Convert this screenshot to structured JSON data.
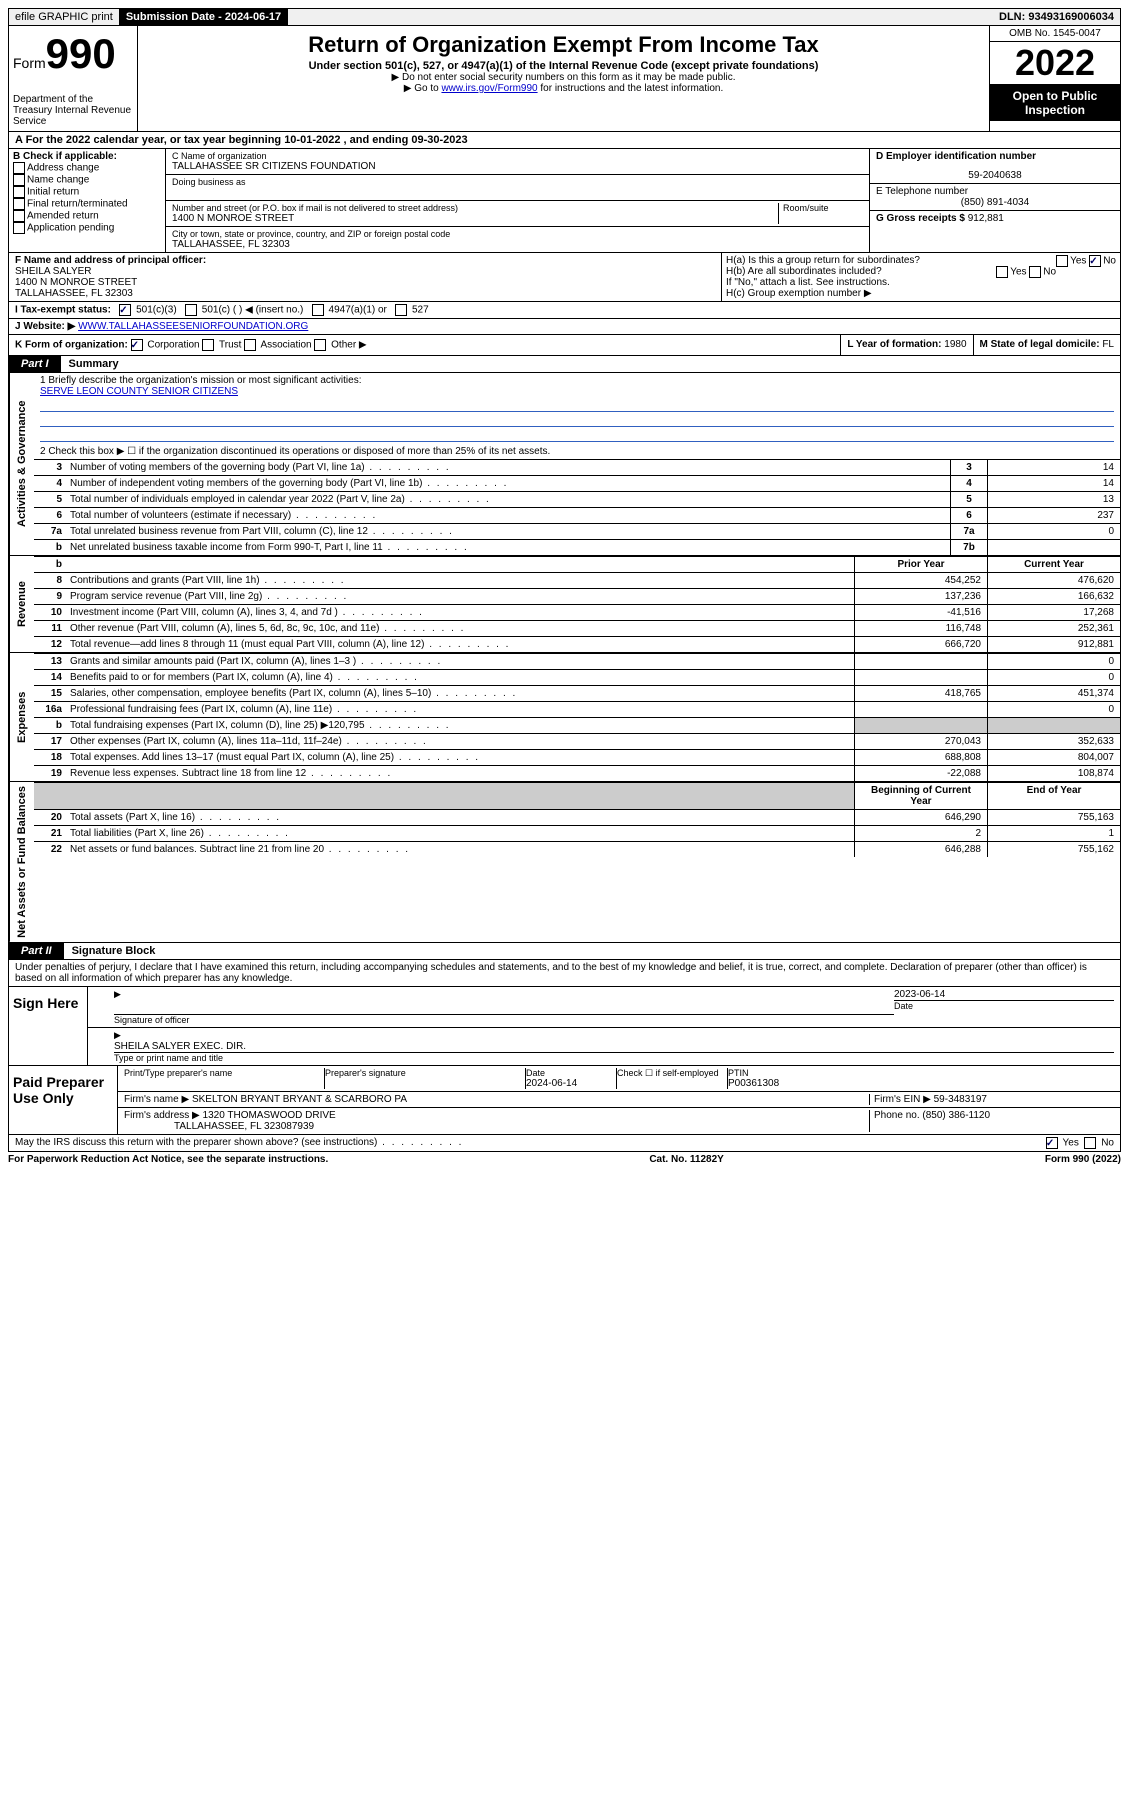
{
  "topbar": {
    "efile": "efile GRAPHIC print",
    "submission_label": "Submission Date - 2024-06-17",
    "dln": "DLN: 93493169006034"
  },
  "header": {
    "form_word": "Form",
    "form_num": "990",
    "dept": "Department of the Treasury Internal Revenue Service",
    "title": "Return of Organization Exempt From Income Tax",
    "sub": "Under section 501(c), 527, or 4947(a)(1) of the Internal Revenue Code (except private foundations)",
    "note1": "▶ Do not enter social security numbers on this form as it may be made public.",
    "note2_pre": "▶ Go to ",
    "note2_link": "www.irs.gov/Form990",
    "note2_post": " for instructions and the latest information.",
    "omb": "OMB No. 1545-0047",
    "year": "2022",
    "inspect": "Open to Public Inspection"
  },
  "line_a": "A For the 2022 calendar year, or tax year beginning 10-01-2022   , and ending 09-30-2023",
  "col_b": {
    "label": "B Check if applicable:",
    "items": [
      "Address change",
      "Name change",
      "Initial return",
      "Final return/terminated",
      "Amended return",
      "Application pending"
    ]
  },
  "col_c": {
    "name_lbl": "C Name of organization",
    "name": "TALLAHASSEE SR CITIZENS FOUNDATION",
    "dba_lbl": "Doing business as",
    "addr_lbl": "Number and street (or P.O. box if mail is not delivered to street address)",
    "room_lbl": "Room/suite",
    "addr": "1400 N MONROE STREET",
    "city_lbl": "City or town, state or province, country, and ZIP or foreign postal code",
    "city": "TALLAHASSEE, FL  32303"
  },
  "col_d": {
    "ein_lbl": "D Employer identification number",
    "ein": "59-2040638",
    "tel_lbl": "E Telephone number",
    "tel": "(850) 891-4034",
    "gross_lbl": "G Gross receipts $",
    "gross": "912,881"
  },
  "row_f": {
    "lbl": "F Name and address of principal officer:",
    "name": "SHEILA SALYER",
    "addr1": "1400 N MONROE STREET",
    "addr2": "TALLAHASSEE, FL  32303"
  },
  "row_h": {
    "ha": "H(a)  Is this a group return for subordinates?",
    "hb": "H(b)  Are all subordinates included?",
    "hb_note": "If \"No,\" attach a list. See instructions.",
    "hc": "H(c)  Group exemption number ▶",
    "yes": "Yes",
    "no": "No"
  },
  "row_i": {
    "lbl": "I   Tax-exempt status:",
    "opt1": "501(c)(3)",
    "opt2": "501(c) (  ) ◀ (insert no.)",
    "opt3": "4947(a)(1) or",
    "opt4": "527"
  },
  "row_j": {
    "lbl": "J   Website: ▶",
    "val": "WWW.TALLAHASSEESENIORFOUNDATION.ORG"
  },
  "row_k": {
    "lbl": "K Form of organization:",
    "opts": [
      "Corporation",
      "Trust",
      "Association",
      "Other ▶"
    ],
    "l_lbl": "L Year of formation:",
    "l_val": "1980",
    "m_lbl": "M State of legal domicile:",
    "m_val": "FL"
  },
  "part1": {
    "tab": "Part I",
    "title": "Summary",
    "mission_lbl": "1  Briefly describe the organization's mission or most significant activities:",
    "mission": "SERVE LEON COUNTY SENIOR CITIZENS",
    "line2": "2   Check this box ▶ ☐  if the organization discontinued its operations or disposed of more than 25% of its net assets."
  },
  "vtabs": {
    "gov": "Activities & Governance",
    "rev": "Revenue",
    "exp": "Expenses",
    "net": "Net Assets or Fund Balances"
  },
  "gov_rows": [
    {
      "n": "3",
      "d": "Number of voting members of the governing body (Part VI, line 1a)",
      "k": "3",
      "v": "14"
    },
    {
      "n": "4",
      "d": "Number of independent voting members of the governing body (Part VI, line 1b)",
      "k": "4",
      "v": "14"
    },
    {
      "n": "5",
      "d": "Total number of individuals employed in calendar year 2022 (Part V, line 2a)",
      "k": "5",
      "v": "13"
    },
    {
      "n": "6",
      "d": "Total number of volunteers (estimate if necessary)",
      "k": "6",
      "v": "237"
    },
    {
      "n": "7a",
      "d": "Total unrelated business revenue from Part VIII, column (C), line 12",
      "k": "7a",
      "v": "0"
    },
    {
      "n": "b",
      "d": "Net unrelated business taxable income from Form 990-T, Part I, line 11",
      "k": "7b",
      "v": ""
    }
  ],
  "two_col_hdr": {
    "py": "Prior Year",
    "cy": "Current Year"
  },
  "rev_rows": [
    {
      "n": "8",
      "d": "Contributions and grants (Part VIII, line 1h)",
      "py": "454,252",
      "cy": "476,620"
    },
    {
      "n": "9",
      "d": "Program service revenue (Part VIII, line 2g)",
      "py": "137,236",
      "cy": "166,632"
    },
    {
      "n": "10",
      "d": "Investment income (Part VIII, column (A), lines 3, 4, and 7d )",
      "py": "-41,516",
      "cy": "17,268"
    },
    {
      "n": "11",
      "d": "Other revenue (Part VIII, column (A), lines 5, 6d, 8c, 9c, 10c, and 11e)",
      "py": "116,748",
      "cy": "252,361"
    },
    {
      "n": "12",
      "d": "Total revenue—add lines 8 through 11 (must equal Part VIII, column (A), line 12)",
      "py": "666,720",
      "cy": "912,881"
    }
  ],
  "exp_rows": [
    {
      "n": "13",
      "d": "Grants and similar amounts paid (Part IX, column (A), lines 1–3 )",
      "py": "",
      "cy": "0"
    },
    {
      "n": "14",
      "d": "Benefits paid to or for members (Part IX, column (A), line 4)",
      "py": "",
      "cy": "0"
    },
    {
      "n": "15",
      "d": "Salaries, other compensation, employee benefits (Part IX, column (A), lines 5–10)",
      "py": "418,765",
      "cy": "451,374"
    },
    {
      "n": "16a",
      "d": "Professional fundraising fees (Part IX, column (A), line 11e)",
      "py": "",
      "cy": "0"
    },
    {
      "n": "b",
      "d": "Total fundraising expenses (Part IX, column (D), line 25) ▶120,795",
      "py": "grey",
      "cy": "grey"
    },
    {
      "n": "17",
      "d": "Other expenses (Part IX, column (A), lines 11a–11d, 11f–24e)",
      "py": "270,043",
      "cy": "352,633"
    },
    {
      "n": "18",
      "d": "Total expenses. Add lines 13–17 (must equal Part IX, column (A), line 25)",
      "py": "688,808",
      "cy": "804,007"
    },
    {
      "n": "19",
      "d": "Revenue less expenses. Subtract line 18 from line 12",
      "py": "-22,088",
      "cy": "108,874"
    }
  ],
  "net_hdr": {
    "py": "Beginning of Current Year",
    "cy": "End of Year"
  },
  "net_rows": [
    {
      "n": "20",
      "d": "Total assets (Part X, line 16)",
      "py": "646,290",
      "cy": "755,163"
    },
    {
      "n": "21",
      "d": "Total liabilities (Part X, line 26)",
      "py": "2",
      "cy": "1"
    },
    {
      "n": "22",
      "d": "Net assets or fund balances. Subtract line 21 from line 20",
      "py": "646,288",
      "cy": "755,162"
    }
  ],
  "part2": {
    "tab": "Part II",
    "title": "Signature Block",
    "decl": "Under penalties of perjury, I declare that I have examined this return, including accompanying schedules and statements, and to the best of my knowledge and belief, it is true, correct, and complete. Declaration of preparer (other than officer) is based on all information of which preparer has any knowledge."
  },
  "sign": {
    "left": "Sign Here",
    "sig_lbl": "Signature of officer",
    "date": "2023-06-14",
    "date_lbl": "Date",
    "name": "SHEILA SALYER  EXEC. DIR.",
    "name_lbl": "Type or print name and title"
  },
  "paid": {
    "left": "Paid Preparer Use Only",
    "r1": {
      "c1": "Print/Type preparer's name",
      "c2": "Preparer's signature",
      "c3": "Date",
      "c3v": "2024-06-14",
      "c4": "Check ☐ if self-employed",
      "c5": "PTIN",
      "c5v": "P00361308"
    },
    "r2": {
      "lbl": "Firm's name    ▶",
      "val": "SKELTON BRYANT BRYANT & SCARBORO PA",
      "ein_lbl": "Firm's EIN ▶",
      "ein": "59-3483197"
    },
    "r3": {
      "lbl": "Firm's address ▶",
      "val1": "1320 THOMASWOOD DRIVE",
      "val2": "TALLAHASSEE, FL  323087939",
      "ph_lbl": "Phone no.",
      "ph": "(850) 386-1120"
    }
  },
  "discuss": "May the IRS discuss this return with the preparer shown above? (see instructions)",
  "footer": {
    "left": "For Paperwork Reduction Act Notice, see the separate instructions.",
    "mid": "Cat. No. 11282Y",
    "right": "Form 990 (2022)"
  }
}
